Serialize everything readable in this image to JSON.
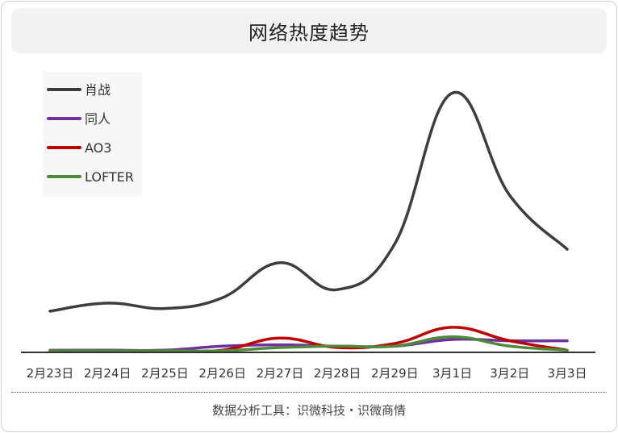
{
  "header": {
    "title": "网络热度趋势"
  },
  "footer": {
    "text": "数据分析工具：识微科技・识微商情"
  },
  "chart_data": {
    "type": "line",
    "title": "网络热度趋势",
    "categories": [
      "2月23日",
      "2月24日",
      "2月25日",
      "2月26日",
      "2月27日",
      "2月28日",
      "2月29日",
      "3月1日",
      "3月2日",
      "3月3日"
    ],
    "series": [
      {
        "name": "肖战",
        "color": "#3d3d3d",
        "values": [
          15,
          18,
          16,
          20,
          33,
          23,
          40,
          96,
          58,
          38
        ]
      },
      {
        "name": "同人",
        "color": "#7030a0",
        "values": [
          0.5,
          0.5,
          0.5,
          2,
          2.5,
          2,
          2,
          4.5,
          4,
          4
        ]
      },
      {
        "name": "AO3",
        "color": "#c00000",
        "values": [
          0,
          0,
          0,
          0.5,
          5,
          1.5,
          3,
          9,
          4,
          0.5
        ]
      },
      {
        "name": "LOFTER",
        "color": "#4e8a3a",
        "values": [
          0.3,
          0.3,
          0.3,
          0.3,
          1.5,
          2,
          2,
          5.5,
          2,
          0.5
        ]
      }
    ],
    "ylim": [
      0,
      100
    ],
    "grid": false,
    "legend": "top-left",
    "xlabel": "",
    "ylabel": ""
  }
}
